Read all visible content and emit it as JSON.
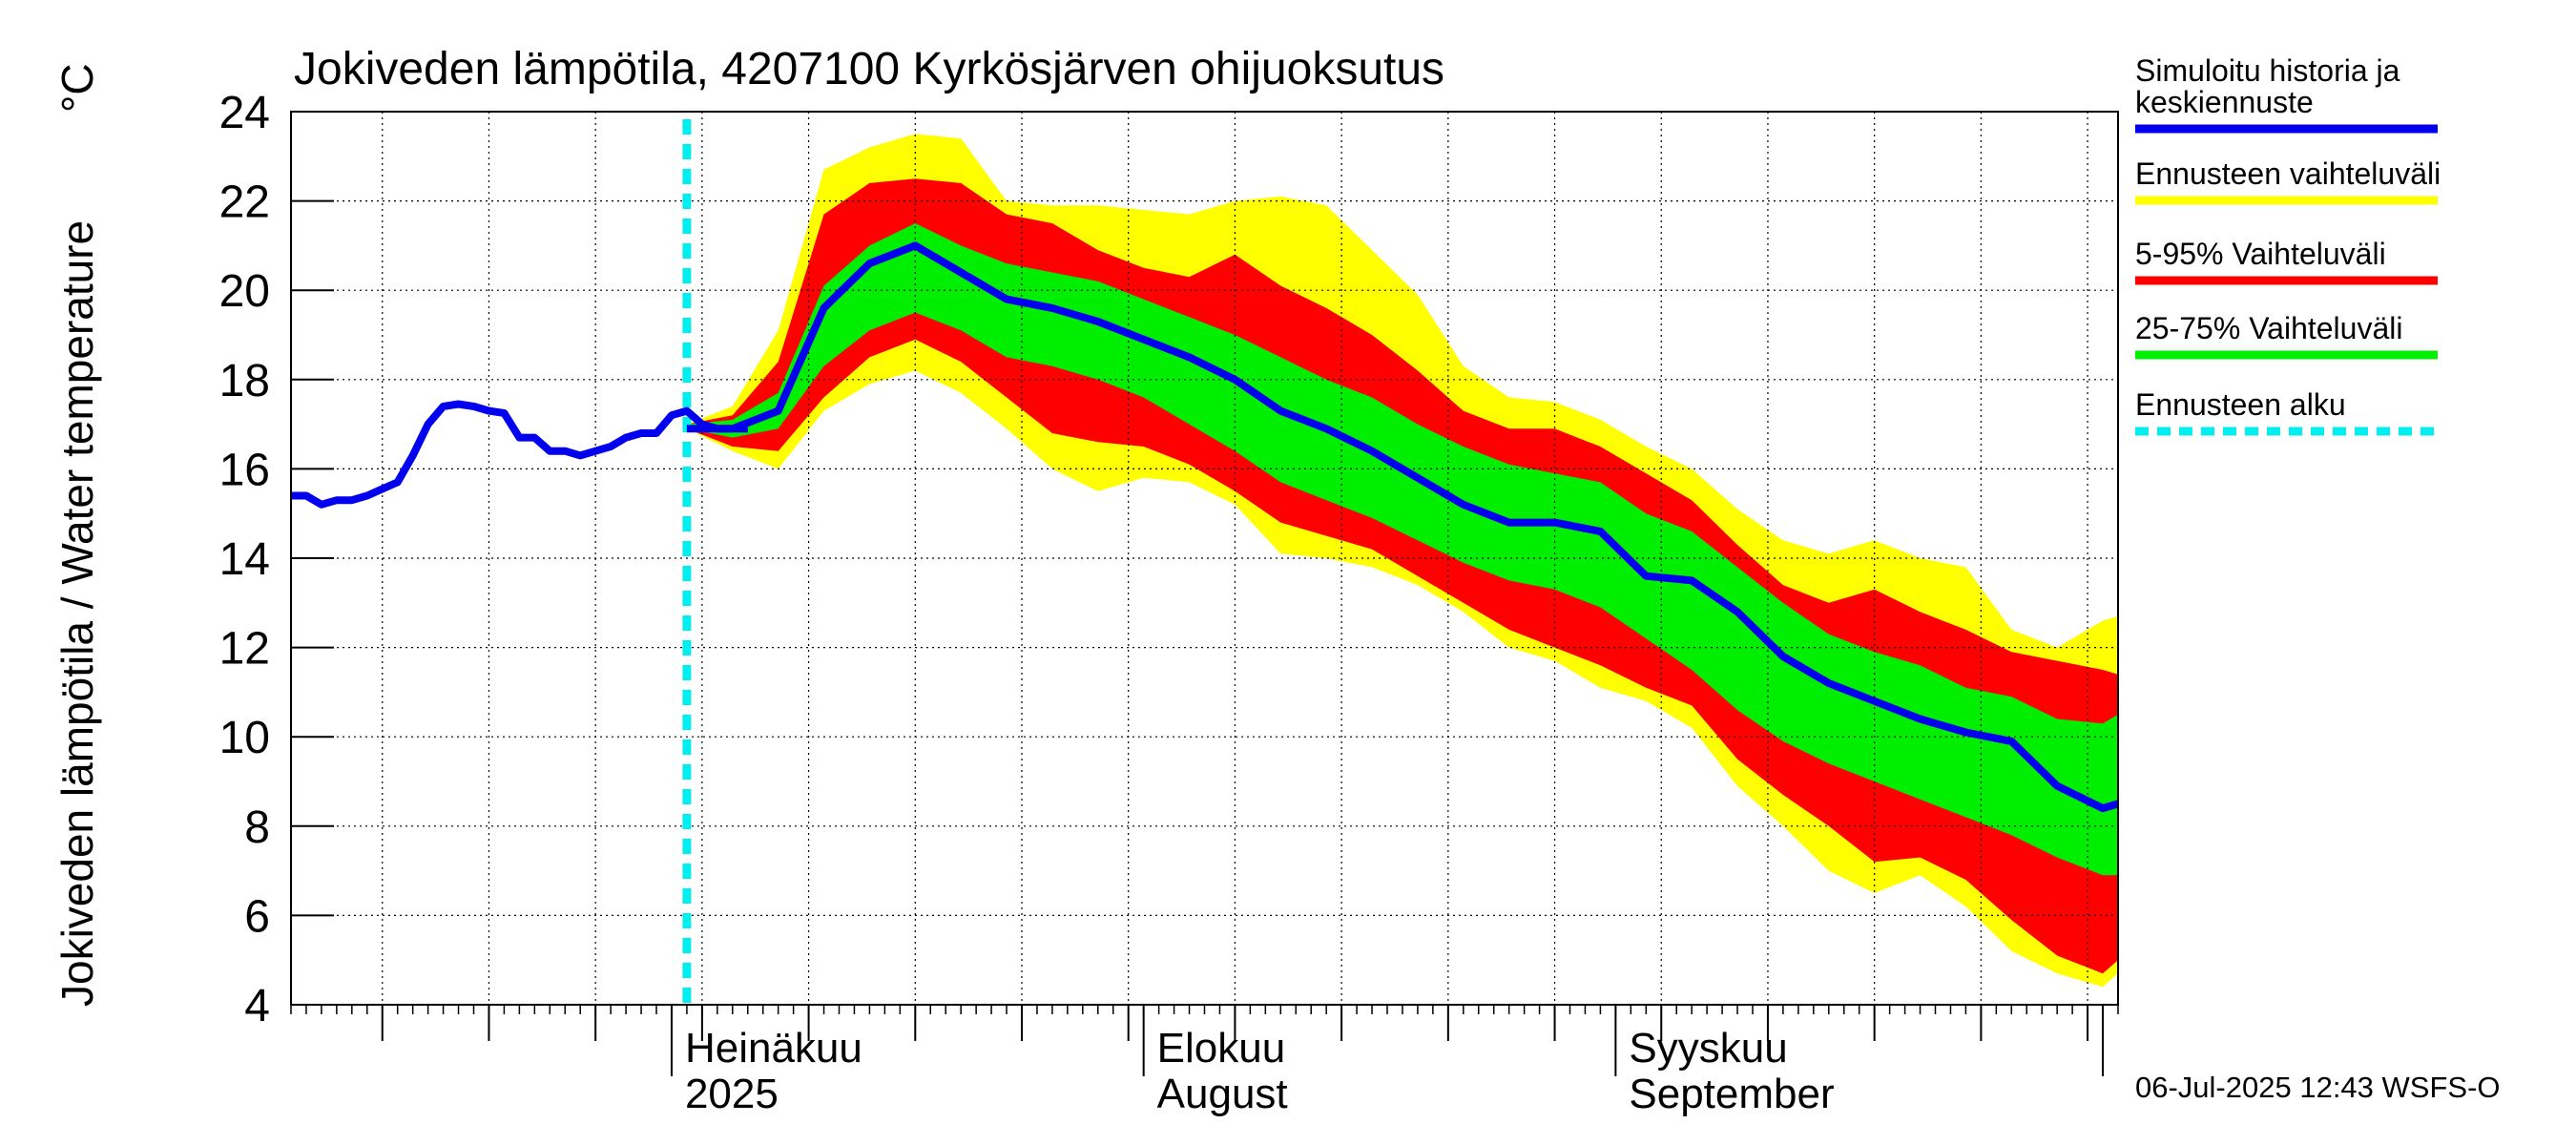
{
  "chart_data": {
    "type": "area",
    "title": "Jokiveden lämpötila, 4207100 Kyrkösjärven ohijuoksutus",
    "ylabel": "Jokiveden lämpötila / Water temperature",
    "yunit": "°C",
    "ylim": [
      4,
      24
    ],
    "yticks": [
      4,
      6,
      8,
      10,
      12,
      14,
      16,
      18,
      20,
      22,
      24
    ],
    "xlim": [
      "2025-06-06",
      "2025-10-04"
    ],
    "month_labels": [
      {
        "date": "2025-07-01",
        "line1": "Heinäkuu",
        "line2": "2025"
      },
      {
        "date": "2025-08-01",
        "line1": "Elokuu",
        "line2": "August"
      },
      {
        "date": "2025-09-01",
        "line1": "Syyskuu",
        "line2": "September"
      }
    ],
    "forecast_start": "2025-07-02",
    "footer": "06-Jul-2025 12:43 WSFS-O",
    "legend": {
      "placement": "right",
      "items": [
        {
          "key": "median",
          "label_lines": [
            "Simuloitu historia ja",
            "keskiennuste"
          ],
          "color": "#0000ee",
          "style": "solid"
        },
        {
          "key": "range",
          "label_lines": [
            "Ennusteen vaihteluväli"
          ],
          "color": "#ffff00",
          "style": "solid"
        },
        {
          "key": "p5_95",
          "label_lines": [
            "5-95% Vaihteluväli"
          ],
          "color": "#ff0000",
          "style": "solid"
        },
        {
          "key": "p25_75",
          "label_lines": [
            "25-75% Vaihteluväli"
          ],
          "color": "#00ee00",
          "style": "solid"
        },
        {
          "key": "start",
          "label_lines": [
            "Ennusteen alku"
          ],
          "color": "#00eeee",
          "style": "dashed"
        }
      ]
    },
    "colors": {
      "history": "#0000ee",
      "range": "#ffff00",
      "p5_95": "#ff0000",
      "p25_75": "#00ee00",
      "forecast_start": "#00eeee"
    },
    "history": {
      "x": [
        "2025-06-06",
        "2025-06-07",
        "2025-06-08",
        "2025-06-09",
        "2025-06-10",
        "2025-06-11",
        "2025-06-13",
        "2025-06-14",
        "2025-06-15",
        "2025-06-16",
        "2025-06-17",
        "2025-06-18",
        "2025-06-19",
        "2025-06-20",
        "2025-06-21",
        "2025-06-22",
        "2025-06-23",
        "2025-06-24",
        "2025-06-25",
        "2025-06-26",
        "2025-06-27",
        "2025-06-28",
        "2025-06-29",
        "2025-06-30",
        "2025-07-01",
        "2025-07-02",
        "2025-07-03",
        "2025-07-04",
        "2025-07-05",
        "2025-07-06"
      ],
      "values": [
        15.4,
        15.4,
        15.2,
        15.3,
        15.3,
        15.4,
        15.7,
        16.3,
        17.0,
        17.4,
        17.45,
        17.4,
        17.3,
        17.25,
        16.7,
        16.7,
        16.4,
        16.4,
        16.3,
        16.4,
        16.5,
        16.7,
        16.8,
        16.8,
        17.2,
        17.3,
        17.0,
        16.9,
        16.9,
        16.9
      ]
    },
    "forecast": {
      "x": [
        "2025-07-02",
        "2025-07-05",
        "2025-07-08",
        "2025-07-11",
        "2025-07-14",
        "2025-07-17",
        "2025-07-20",
        "2025-07-23",
        "2025-07-26",
        "2025-07-29",
        "2025-08-01",
        "2025-08-04",
        "2025-08-07",
        "2025-08-10",
        "2025-08-13",
        "2025-08-16",
        "2025-08-19",
        "2025-08-22",
        "2025-08-25",
        "2025-08-28",
        "2025-08-31",
        "2025-09-03",
        "2025-09-06",
        "2025-09-09",
        "2025-09-12",
        "2025-09-15",
        "2025-09-18",
        "2025-09-21",
        "2025-09-24",
        "2025-09-27",
        "2025-09-30",
        "2025-10-03",
        "2025-10-04"
      ],
      "median": [
        16.9,
        16.9,
        17.3,
        19.6,
        20.6,
        21.0,
        20.4,
        19.8,
        19.6,
        19.3,
        18.9,
        18.5,
        18.0,
        17.3,
        16.9,
        16.4,
        15.8,
        15.2,
        14.8,
        14.8,
        14.6,
        13.6,
        13.5,
        12.8,
        11.8,
        11.2,
        10.8,
        10.4,
        10.1,
        9.9,
        8.9,
        8.4,
        8.5
      ],
      "p25": [
        16.9,
        16.7,
        16.9,
        18.3,
        19.1,
        19.5,
        19.1,
        18.5,
        18.3,
        18.0,
        17.6,
        17.0,
        16.4,
        15.7,
        15.3,
        14.9,
        14.4,
        13.9,
        13.5,
        13.3,
        12.9,
        12.2,
        11.5,
        10.6,
        9.9,
        9.4,
        9.0,
        8.6,
        8.2,
        7.8,
        7.3,
        6.9,
        6.9
      ],
      "p75": [
        17.0,
        17.1,
        17.7,
        20.1,
        21.0,
        21.5,
        21.0,
        20.6,
        20.4,
        20.2,
        19.8,
        19.4,
        19.0,
        18.5,
        18.0,
        17.6,
        17.0,
        16.5,
        16.1,
        15.9,
        15.7,
        15.0,
        14.6,
        13.8,
        13.0,
        12.3,
        11.9,
        11.6,
        11.1,
        10.9,
        10.4,
        10.3,
        10.5
      ],
      "p5": [
        16.9,
        16.5,
        16.4,
        17.6,
        18.5,
        18.9,
        18.4,
        17.6,
        16.8,
        16.6,
        16.5,
        16.1,
        15.5,
        14.8,
        14.5,
        14.2,
        13.6,
        13.0,
        12.4,
        12.0,
        11.6,
        11.1,
        10.7,
        9.5,
        8.7,
        8.0,
        7.2,
        7.3,
        6.8,
        5.9,
        5.1,
        4.7,
        5.0
      ],
      "p95": [
        17.0,
        17.2,
        18.4,
        21.7,
        22.4,
        22.5,
        22.4,
        21.7,
        21.5,
        20.9,
        20.5,
        20.3,
        20.8,
        20.1,
        19.6,
        19.0,
        18.2,
        17.3,
        16.9,
        16.9,
        16.5,
        15.9,
        15.3,
        14.3,
        13.4,
        13.0,
        13.3,
        12.8,
        12.4,
        11.9,
        11.7,
        11.5,
        11.4
      ],
      "min": [
        16.9,
        16.4,
        16.0,
        17.3,
        17.9,
        18.2,
        17.7,
        16.9,
        16.0,
        15.5,
        15.8,
        15.7,
        15.2,
        14.1,
        14.0,
        13.8,
        13.4,
        12.8,
        12.0,
        11.7,
        11.1,
        10.8,
        10.2,
        8.9,
        8.0,
        7.0,
        6.5,
        6.9,
        6.2,
        5.2,
        4.7,
        4.4,
        4.7
      ],
      "max": [
        17.0,
        17.4,
        19.1,
        22.7,
        23.2,
        23.5,
        23.4,
        22.0,
        21.9,
        21.9,
        21.8,
        21.7,
        22.0,
        22.1,
        21.9,
        20.9,
        19.9,
        18.3,
        17.6,
        17.5,
        17.1,
        16.5,
        16.0,
        15.1,
        14.4,
        14.1,
        14.4,
        14.0,
        13.8,
        12.4,
        12.0,
        12.6,
        12.7
      ]
    }
  }
}
